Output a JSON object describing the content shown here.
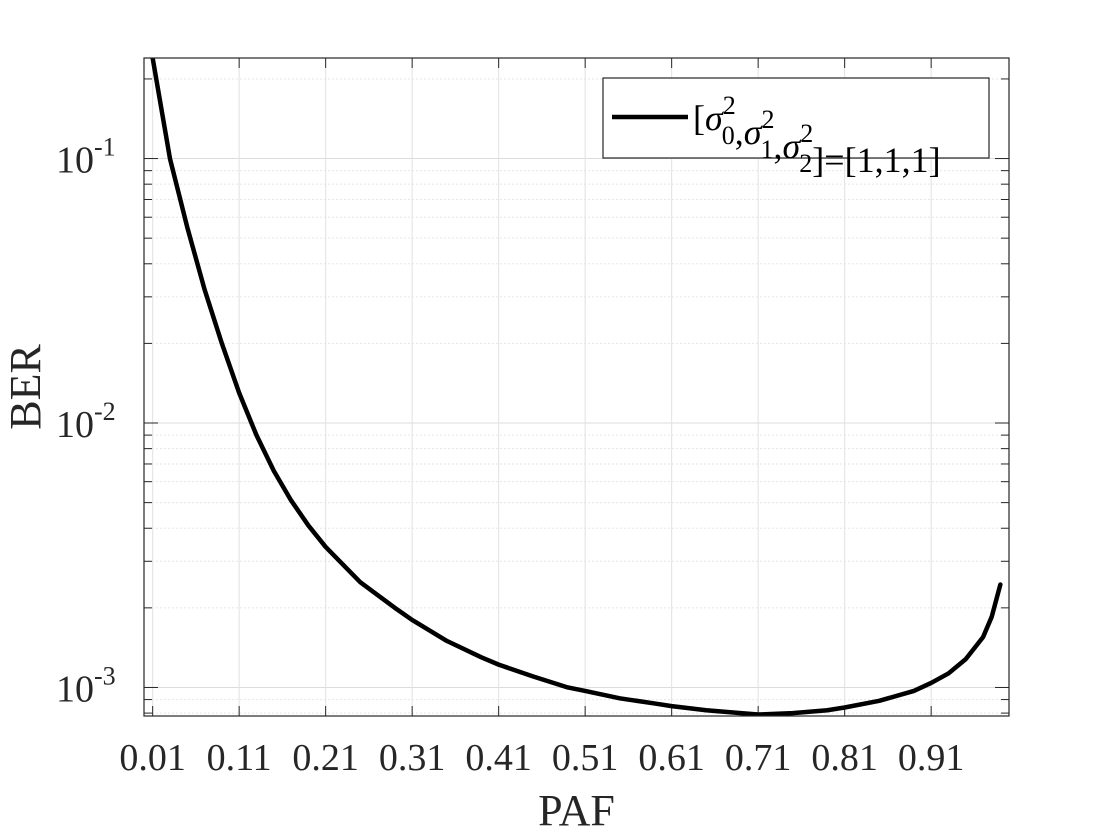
{
  "chart_data": {
    "type": "line",
    "title": "",
    "xlabel": "PAF",
    "ylabel": "BER",
    "xlim": [
      0,
      1
    ],
    "ylim": [
      0.00078,
      0.24
    ],
    "yscale": "log",
    "grid": true,
    "legend_position": "top-right",
    "x_ticks": [
      0.01,
      0.11,
      0.21,
      0.31,
      0.41,
      0.51,
      0.61,
      0.71,
      0.81,
      0.91
    ],
    "x_tick_labels": [
      "0.01",
      "0.11",
      "0.21",
      "0.31",
      "0.41",
      "0.51",
      "0.61",
      "0.71",
      "0.81",
      "0.91"
    ],
    "y_ticks": [
      {
        "value": 0.1,
        "base": "10",
        "exp": "-1"
      },
      {
        "value": 0.01,
        "base": "10",
        "exp": "-2"
      },
      {
        "value": 0.001,
        "base": "10",
        "exp": "-3"
      }
    ],
    "legend": {
      "prefix": "[",
      "symbol": "σ",
      "terms": [
        {
          "sup": "2",
          "sub": "0"
        },
        {
          "sup": "2",
          "sub": "1"
        },
        {
          "sup": "2",
          "sub": "2"
        }
      ],
      "separator": ",",
      "suffix": "]=[1,1,1]"
    },
    "series": [
      {
        "color": "#000000",
        "x": [
          0.01,
          0.03,
          0.05,
          0.07,
          0.09,
          0.11,
          0.13,
          0.15,
          0.17,
          0.19,
          0.21,
          0.25,
          0.29,
          0.31,
          0.35,
          0.39,
          0.41,
          0.45,
          0.49,
          0.51,
          0.55,
          0.59,
          0.61,
          0.65,
          0.69,
          0.71,
          0.75,
          0.79,
          0.81,
          0.85,
          0.89,
          0.91,
          0.93,
          0.95,
          0.97,
          0.98,
          0.99
        ],
        "y": [
          0.24,
          0.1,
          0.055,
          0.032,
          0.02,
          0.013,
          0.009,
          0.0066,
          0.0051,
          0.0041,
          0.0034,
          0.0025,
          0.002,
          0.0018,
          0.0015,
          0.0013,
          0.00122,
          0.0011,
          0.001,
          0.00097,
          0.00091,
          0.00087,
          0.00085,
          0.00082,
          0.0008,
          0.00079,
          0.0008,
          0.00082,
          0.00084,
          0.00089,
          0.00097,
          0.00104,
          0.00113,
          0.00128,
          0.00155,
          0.00185,
          0.00245
        ]
      }
    ]
  }
}
